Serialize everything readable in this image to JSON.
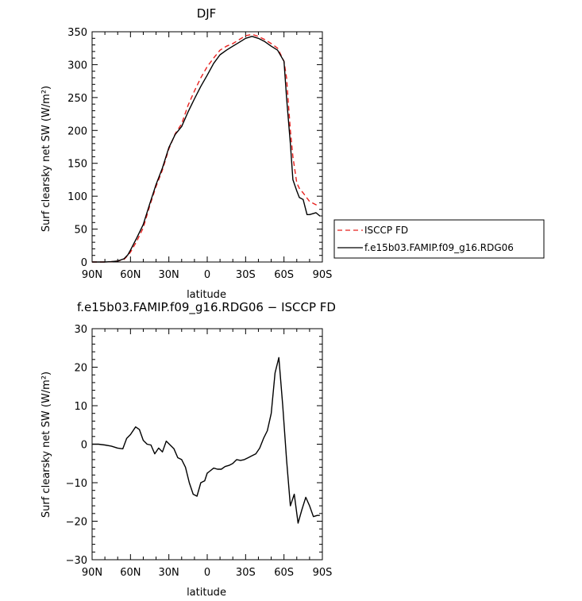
{
  "chart_data": [
    {
      "type": "line",
      "title": "DJF",
      "xlabel": "latitude",
      "ylabel": "Surf clearsky net SW (W/m²)",
      "xlim": [
        -90,
        90
      ],
      "ylim": [
        0,
        350
      ],
      "xticks": [
        -90,
        -60,
        -30,
        0,
        30,
        60,
        90
      ],
      "xtick_labels": [
        "90N",
        "60N",
        "30N",
        "0",
        "30S",
        "60S",
        "90S"
      ],
      "yticks": [
        0,
        50,
        100,
        150,
        200,
        250,
        300,
        350
      ],
      "ytick_labels": [
        "0",
        "50",
        "100",
        "150",
        "200",
        "250",
        "300",
        "350"
      ],
      "legend_position": "right",
      "series": [
        {
          "name": "ISCCP FD",
          "color": "#e8201e",
          "style": "dashed",
          "x": [
            -90,
            -85,
            -80,
            -75,
            -70,
            -65,
            -62,
            -60,
            -55,
            -50,
            -45,
            -40,
            -35,
            -30,
            -25,
            -20,
            -15,
            -10,
            -5,
            0,
            5,
            10,
            15,
            20,
            25,
            30,
            35,
            40,
            45,
            50,
            55,
            60,
            62,
            65,
            67,
            70,
            72,
            75,
            80,
            85,
            88
          ],
          "y": [
            0,
            0,
            0,
            0.5,
            1.5,
            4,
            10,
            15,
            32,
            52,
            85,
            115,
            140,
            172,
            195,
            210,
            238,
            260,
            280,
            297,
            310,
            322,
            328,
            332,
            338,
            344,
            346,
            343,
            338,
            332,
            325,
            305,
            280,
            200,
            160,
            120,
            112,
            105,
            92,
            87,
            87
          ]
        },
        {
          "name": "f.e15b03.FAMIP.f09_g16.RDG06",
          "color": "#000000",
          "style": "solid",
          "x": [
            -90,
            -85,
            -80,
            -75,
            -70,
            -65,
            -62,
            -60,
            -55,
            -50,
            -45,
            -40,
            -35,
            -30,
            -25,
            -20,
            -15,
            -10,
            -5,
            0,
            5,
            10,
            15,
            20,
            25,
            30,
            35,
            40,
            45,
            50,
            55,
            60,
            62,
            65,
            67,
            70,
            72,
            75,
            78,
            80,
            85,
            88
          ],
          "y": [
            0,
            0,
            0,
            0.5,
            1.5,
            5,
            11,
            18,
            37,
            57,
            88,
            118,
            143,
            174,
            194,
            206,
            228,
            248,
            267,
            284,
            302,
            315,
            322,
            328,
            334,
            340,
            343,
            340,
            335,
            328,
            322,
            305,
            250,
            180,
            125,
            108,
            98,
            95,
            72,
            72,
            75,
            70
          ]
        }
      ]
    },
    {
      "type": "line",
      "title": "f.e15b03.FAMIP.f09_g16.RDG06 − ISCCP FD",
      "xlabel": "latitude",
      "ylabel": "Surf clearsky net SW (W/m²)",
      "xlim": [
        -90,
        90
      ],
      "ylim": [
        -30,
        30
      ],
      "xticks": [
        -90,
        -60,
        -30,
        0,
        30,
        60,
        90
      ],
      "xtick_labels": [
        "90N",
        "60N",
        "30N",
        "0",
        "30S",
        "60S",
        "90S"
      ],
      "yticks": [
        -30,
        -20,
        -10,
        0,
        10,
        20,
        30
      ],
      "ytick_labels": [
        "−30",
        "−20",
        "−10",
        "0",
        "10",
        "20",
        "30"
      ],
      "series": [
        {
          "color": "#000000",
          "style": "solid",
          "x": [
            -90,
            -85,
            -80,
            -75,
            -70,
            -66,
            -63,
            -60,
            -56,
            -53,
            -50,
            -47,
            -44,
            -41,
            -38,
            -35,
            -32,
            -29,
            -26,
            -23,
            -20,
            -17,
            -14,
            -11,
            -8,
            -5,
            -2,
            0,
            2,
            5,
            8,
            11,
            14,
            17,
            20,
            23,
            26,
            29,
            32,
            35,
            38,
            41,
            44,
            47,
            50,
            53,
            56,
            59,
            62,
            65,
            68,
            71,
            74,
            77,
            80,
            83,
            86,
            88
          ],
          "y": [
            0,
            0,
            -0.2,
            -0.5,
            -1,
            -1.2,
            1.5,
            2.5,
            4.5,
            3.8,
            1,
            0,
            -0.2,
            -2.5,
            -1,
            -2,
            0.8,
            -0.2,
            -1.2,
            -3.5,
            -4,
            -6,
            -10,
            -13,
            -13.5,
            -10,
            -9.5,
            -7.5,
            -7,
            -6.2,
            -6.5,
            -6.5,
            -5.8,
            -5.5,
            -5,
            -4,
            -4.2,
            -4,
            -3.5,
            -3,
            -2.5,
            -1,
            1.5,
            3.5,
            8,
            18.5,
            22.5,
            10,
            -4,
            -16,
            -13,
            -20.5,
            -17,
            -13.8,
            -16,
            -18.8,
            -18.5,
            -18.5
          ]
        }
      ]
    }
  ]
}
